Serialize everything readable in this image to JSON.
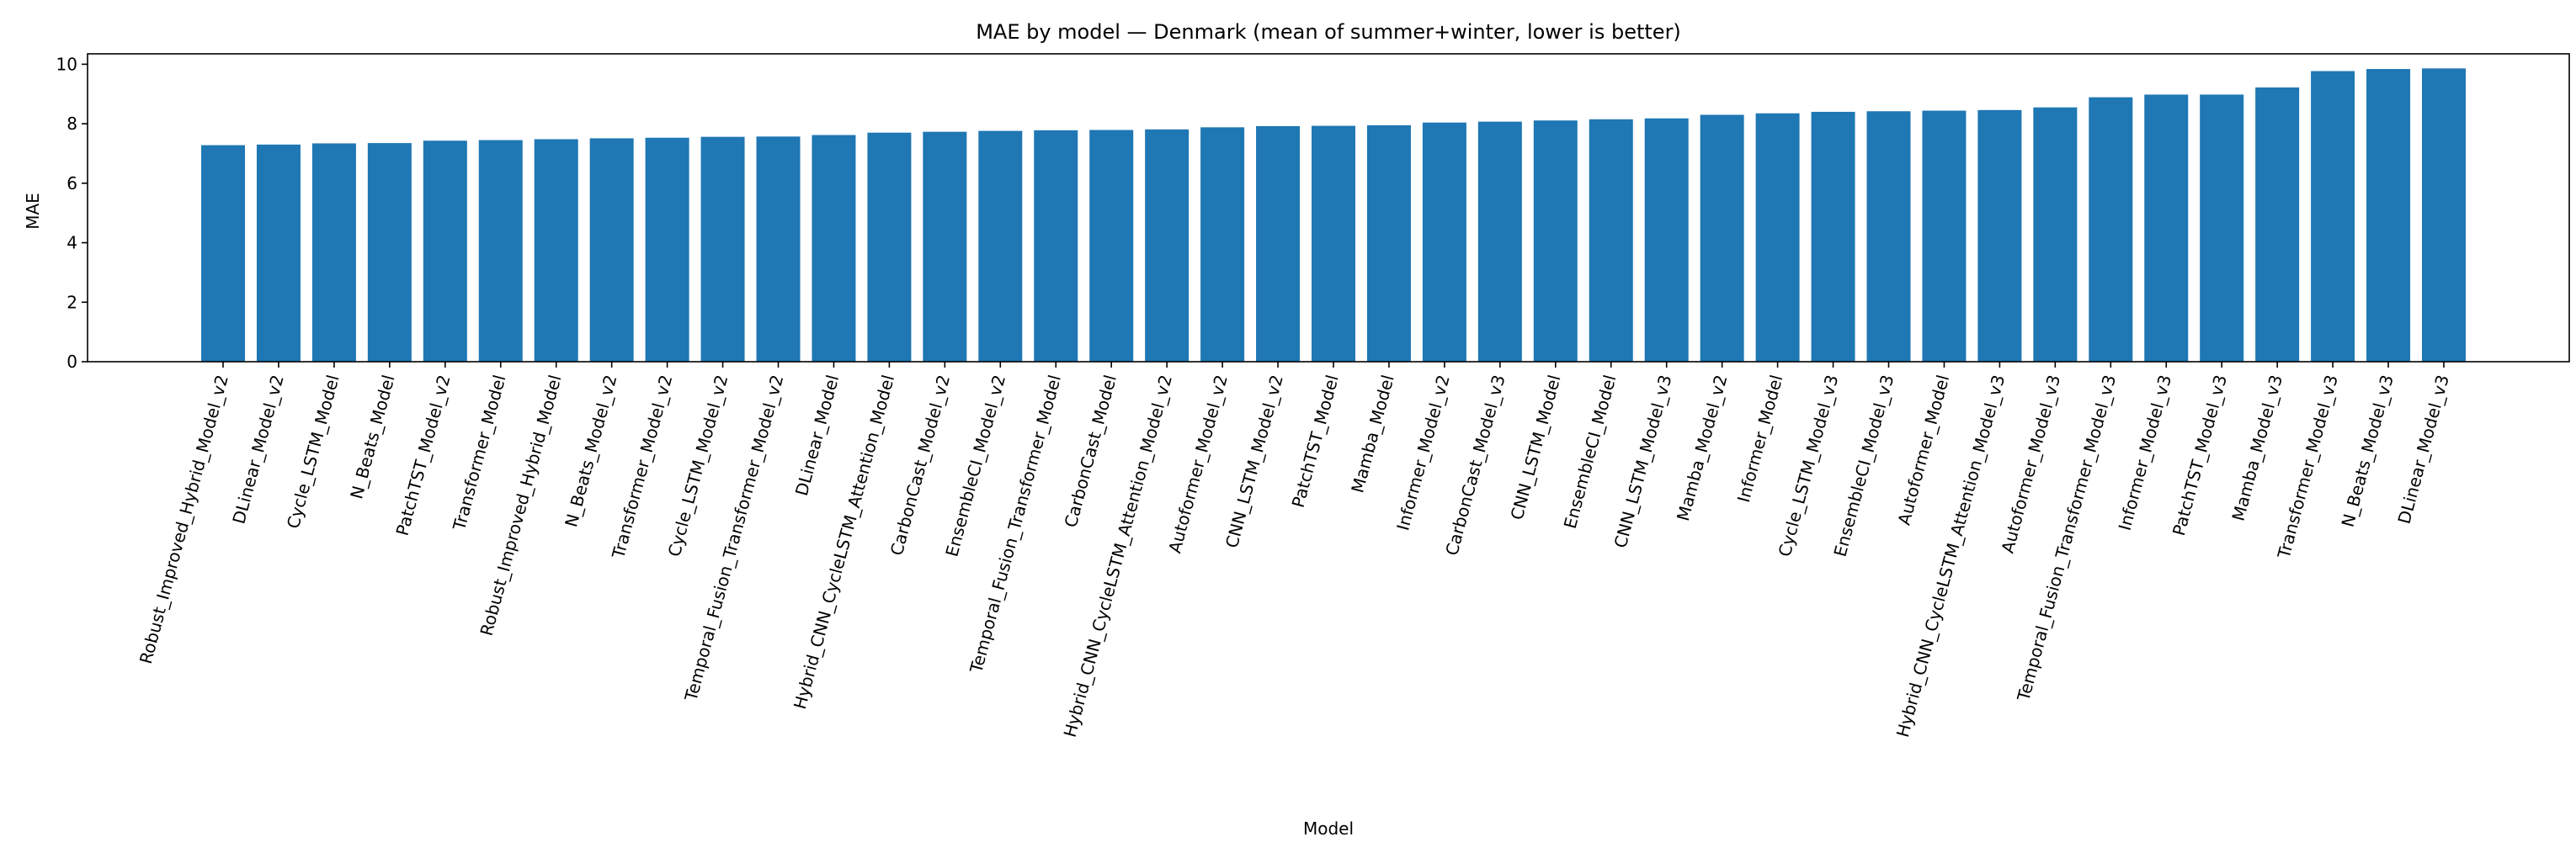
{
  "chart_data": {
    "type": "bar",
    "title": "MAE by model — Denmark (mean of summer+winter, lower is better)",
    "xlabel": "Model",
    "ylabel": "MAE",
    "ylim": [
      0,
      10.35
    ],
    "yticks": [
      "0",
      "2",
      "4",
      "6",
      "8",
      "10"
    ],
    "grid": false,
    "bar_color": "#1f77b4",
    "categories": [
      "Robust_Improved_Hybrid_Model_v2",
      "DLinear_Model_v2",
      "Cycle_LSTM_Model",
      "N_Beats_Model",
      "PatchTST_Model_v2",
      "Transformer_Model",
      "Robust_Improved_Hybrid_Model",
      "N_Beats_Model_v2",
      "Transformer_Model_v2",
      "Cycle_LSTM_Model_v2",
      "Temporal_Fusion_Transformer_Model_v2",
      "DLinear_Model",
      "Hybrid_CNN_CycleLSTM_Attention_Model",
      "CarbonCast_Model_v2",
      "EnsembleCI_Model_v2",
      "Temporal_Fusion_Transformer_Model",
      "CarbonCast_Model",
      "Hybrid_CNN_CycleLSTM_Attention_Model_v2",
      "Autoformer_Model_v2",
      "CNN_LSTM_Model_v2",
      "PatchTST_Model",
      "Mamba_Model",
      "Informer_Model_v2",
      "CarbonCast_Model_v3",
      "CNN_LSTM_Model",
      "EnsembleCI_Model",
      "CNN_LSTM_Model_v3",
      "Mamba_Model_v2",
      "Informer_Model",
      "Cycle_LSTM_Model_v3",
      "EnsembleCI_Model_v3",
      "Autoformer_Model",
      "Hybrid_CNN_CycleLSTM_Attention_Model_v3",
      "Autoformer_Model_v3",
      "Temporal_Fusion_Transformer_Model_v3",
      "Informer_Model_v3",
      "PatchTST_Model_v3",
      "Mamba_Model_v3",
      "Transformer_Model_v3",
      "N_Beats_Model_v3",
      "DLinear_Model_v3"
    ],
    "values": [
      7.28,
      7.3,
      7.34,
      7.35,
      7.43,
      7.45,
      7.48,
      7.51,
      7.53,
      7.56,
      7.57,
      7.62,
      7.7,
      7.73,
      7.76,
      7.78,
      7.79,
      7.81,
      7.88,
      7.92,
      7.93,
      7.95,
      8.04,
      8.07,
      8.11,
      8.15,
      8.18,
      8.3,
      8.35,
      8.4,
      8.42,
      8.44,
      8.46,
      8.55,
      8.89,
      8.98,
      8.98,
      9.22,
      9.77,
      9.84,
      9.86
    ]
  }
}
